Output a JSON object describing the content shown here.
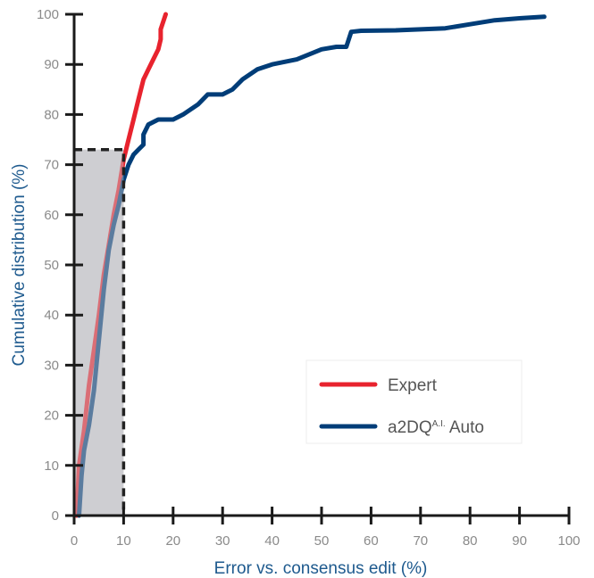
{
  "chart_data": {
    "type": "line",
    "xlabel": "Error vs. consensus edit (%)",
    "ylabel": "Cumulative distribution (%)",
    "xlim": [
      0,
      100
    ],
    "ylim": [
      0,
      100
    ],
    "xticks": [
      "0",
      "10",
      "20",
      "30",
      "40",
      "50",
      "60",
      "70",
      "80",
      "90",
      "100"
    ],
    "yticks": [
      "0",
      "10",
      "20",
      "30",
      "40",
      "50",
      "60",
      "70",
      "80",
      "90",
      "100"
    ],
    "grid": false,
    "legend_position": "bottom-right",
    "highlight_region": {
      "x": [
        0,
        10
      ],
      "y": [
        0,
        73
      ]
    },
    "series": [
      {
        "name": "Expert",
        "color": "#e8232e",
        "points": [
          [
            0.5,
            0
          ],
          [
            1,
            10
          ],
          [
            2,
            17
          ],
          [
            3,
            26
          ],
          [
            4,
            33
          ],
          [
            5,
            40
          ],
          [
            6,
            48
          ],
          [
            7,
            54
          ],
          [
            8,
            60
          ],
          [
            9,
            65
          ],
          [
            10,
            71
          ],
          [
            11,
            75
          ],
          [
            12,
            79
          ],
          [
            13,
            83
          ],
          [
            14,
            87
          ],
          [
            15,
            89
          ],
          [
            16,
            91
          ],
          [
            17,
            93
          ],
          [
            17.5,
            95
          ],
          [
            17.5,
            97
          ],
          [
            18.5,
            100
          ]
        ]
      },
      {
        "name": "a2DQ",
        "name_sup": "A.I.",
        "name_suffix": " Auto",
        "color": "#003d78",
        "points": [
          [
            1,
            0
          ],
          [
            1.5,
            8
          ],
          [
            2,
            13
          ],
          [
            3,
            18
          ],
          [
            4,
            25
          ],
          [
            5,
            35
          ],
          [
            6,
            45
          ],
          [
            7,
            53
          ],
          [
            8,
            58
          ],
          [
            9,
            62
          ],
          [
            10,
            67
          ],
          [
            11,
            70
          ],
          [
            12,
            72
          ],
          [
            13,
            73
          ],
          [
            14,
            74
          ],
          [
            14,
            76
          ],
          [
            15,
            78
          ],
          [
            17,
            79
          ],
          [
            20,
            79
          ],
          [
            22,
            80
          ],
          [
            25,
            82
          ],
          [
            27,
            84
          ],
          [
            30,
            84
          ],
          [
            32,
            85
          ],
          [
            34,
            87
          ],
          [
            37,
            89
          ],
          [
            40,
            90
          ],
          [
            45,
            91
          ],
          [
            50,
            93
          ],
          [
            53,
            93.5
          ],
          [
            55,
            93.5
          ],
          [
            56,
            96.5
          ],
          [
            58,
            96.7
          ],
          [
            65,
            96.8
          ],
          [
            75,
            97.2
          ],
          [
            80,
            98
          ],
          [
            85,
            98.8
          ],
          [
            90,
            99.2
          ],
          [
            95,
            99.5
          ]
        ]
      }
    ]
  }
}
